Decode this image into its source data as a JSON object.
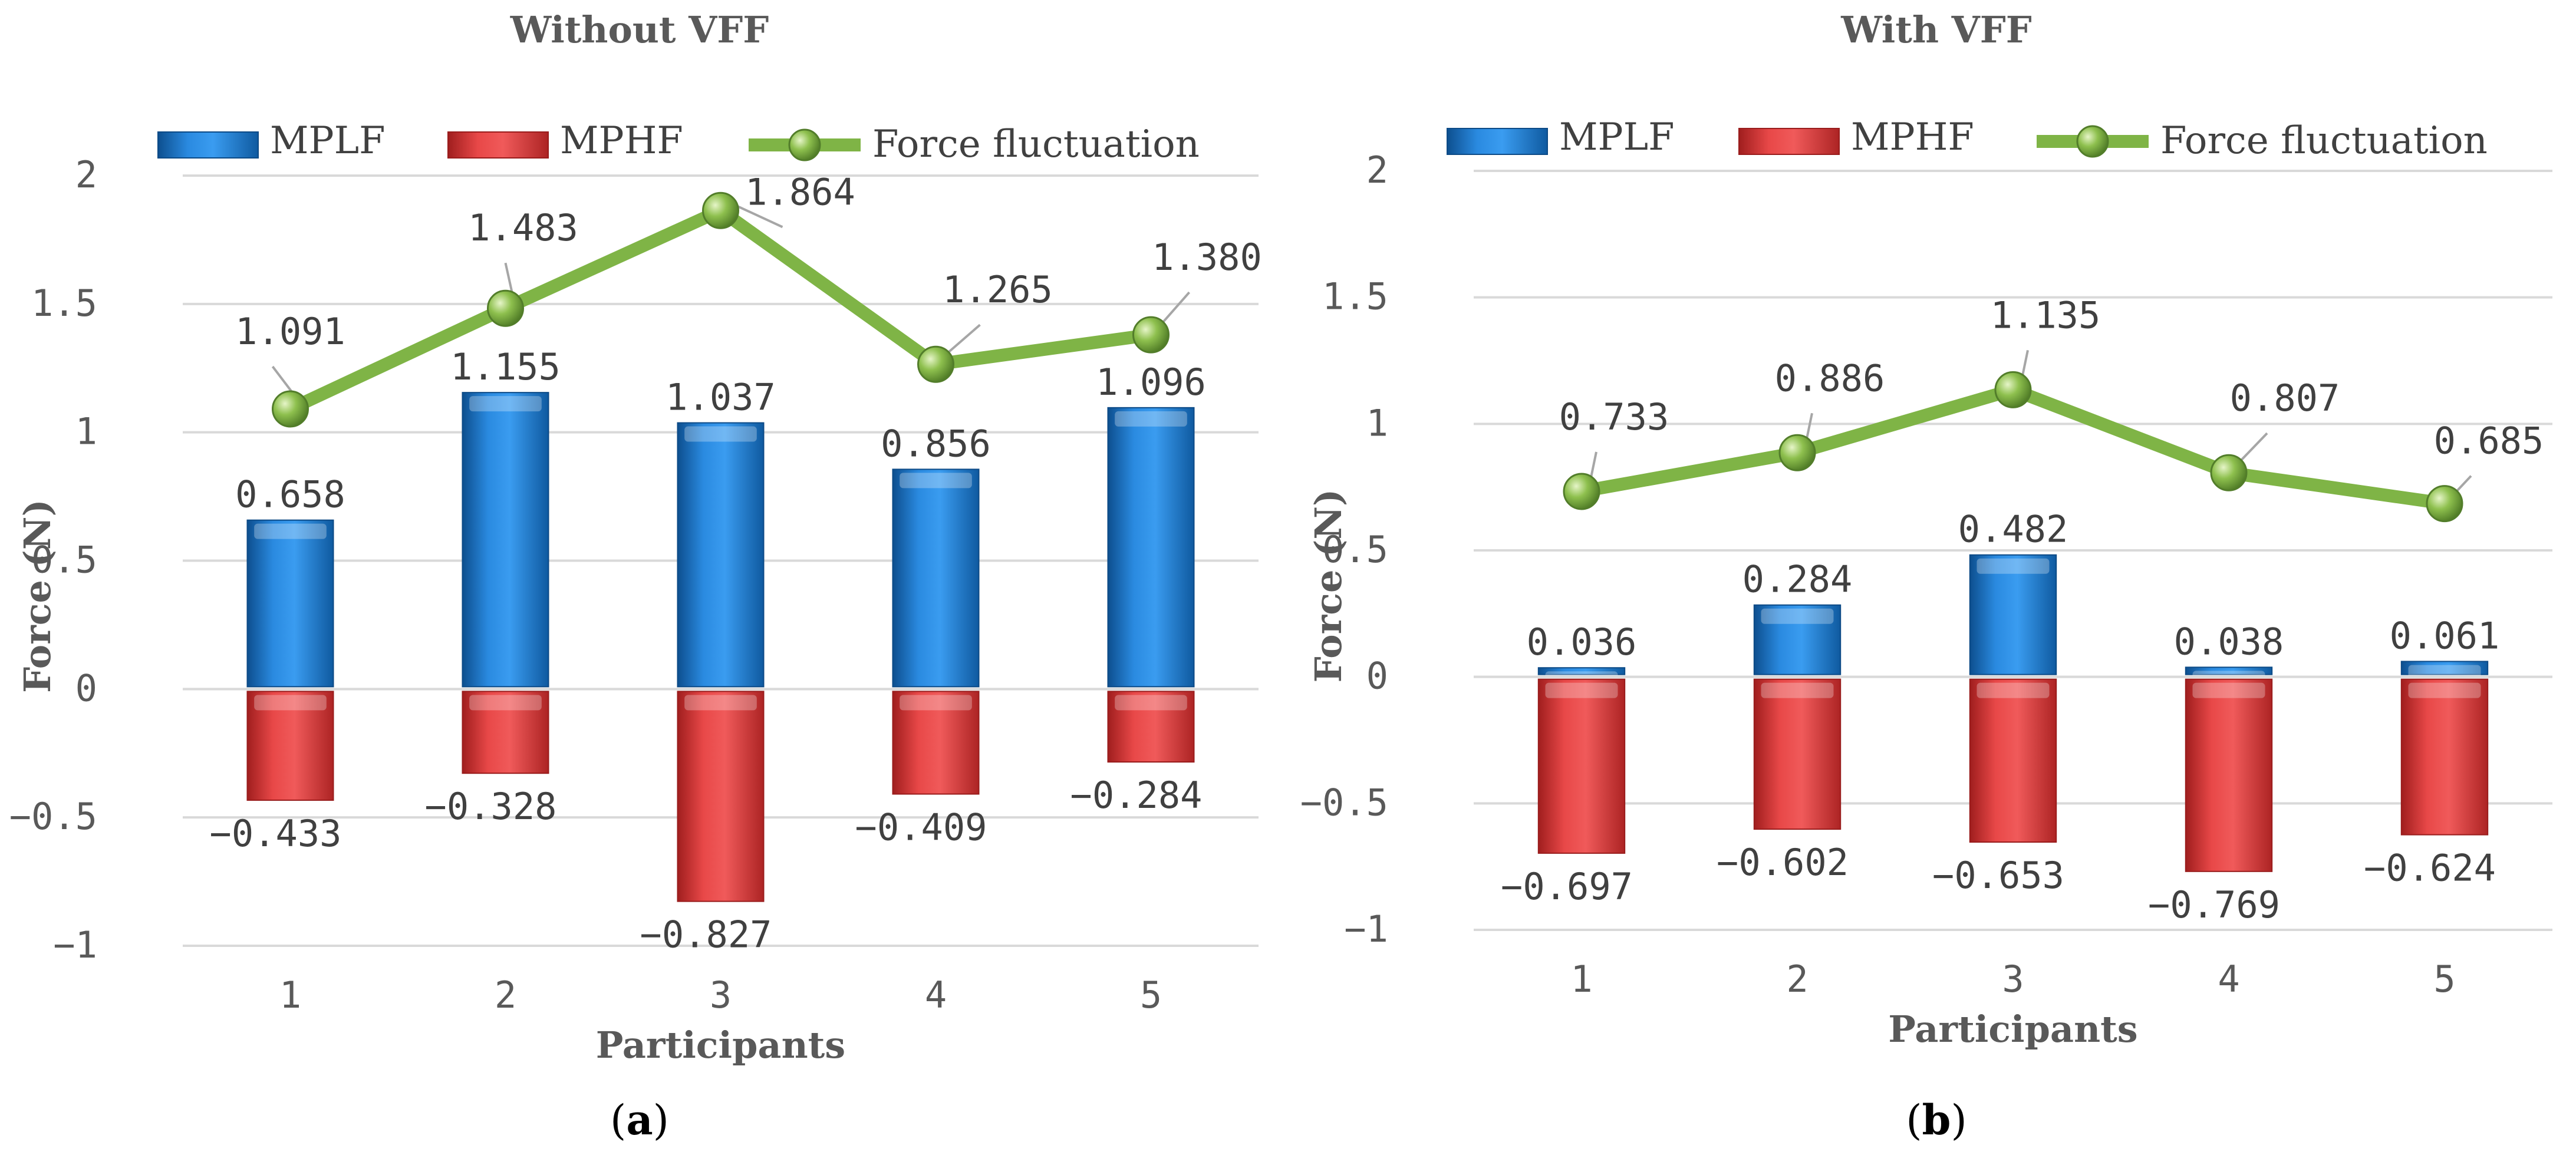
{
  "chart_data": [
    {
      "type": "bar",
      "panel": "a",
      "title": "Without VFF",
      "xlabel": "Participants",
      "ylabel": "Force (N)",
      "ylim": [
        -1,
        2
      ],
      "yticks": [
        -1,
        -0.5,
        0,
        0.5,
        1,
        1.5,
        2
      ],
      "ytick_labels": [
        "−1",
        "−0.5",
        "0",
        "0.5",
        "1",
        "1.5",
        "2"
      ],
      "categories": [
        "1",
        "2",
        "3",
        "4",
        "5"
      ],
      "series": [
        {
          "name": "MPLF",
          "kind": "bar",
          "color": "#1f77c9",
          "values": [
            0.658,
            1.155,
            1.037,
            0.856,
            1.096
          ],
          "labels": [
            "0.658",
            "1.155",
            "1.037",
            "0.856",
            "1.096"
          ]
        },
        {
          "name": "MPHF",
          "kind": "bar",
          "color": "#e03c3c",
          "values": [
            -0.433,
            -0.328,
            -0.827,
            -0.409,
            -0.284
          ],
          "labels": [
            "−0.433",
            "−0.328",
            "−0.827",
            "−0.409",
            "−0.284"
          ]
        },
        {
          "name": "Force fluctuation",
          "kind": "line",
          "color": "#7fb446",
          "values": [
            1.091,
            1.483,
            1.864,
            1.265,
            1.38
          ],
          "labels": [
            "1.091",
            "1.483",
            "1.864",
            "1.265",
            "1.380"
          ]
        }
      ],
      "grid": true,
      "legend": "top"
    },
    {
      "type": "bar",
      "panel": "b",
      "title": "With VFF",
      "xlabel": "Participants",
      "ylabel": "Force (N)",
      "ylim": [
        -1,
        2
      ],
      "yticks": [
        -1,
        -0.5,
        0,
        0.5,
        1,
        1.5,
        2
      ],
      "ytick_labels": [
        "−1",
        "−0.5",
        "0",
        "0.5",
        "1",
        "1.5",
        "2"
      ],
      "categories": [
        "1",
        "2",
        "3",
        "4",
        "5"
      ],
      "series": [
        {
          "name": "MPLF",
          "kind": "bar",
          "color": "#1f77c9",
          "values": [
            0.036,
            0.284,
            0.482,
            0.038,
            0.061
          ],
          "labels": [
            "0.036",
            "0.284",
            "0.482",
            "0.038",
            "0.061"
          ]
        },
        {
          "name": "MPHF",
          "kind": "bar",
          "color": "#e03c3c",
          "values": [
            -0.697,
            -0.602,
            -0.653,
            -0.769,
            -0.624
          ],
          "labels": [
            "−0.697",
            "−0.602",
            "−0.653",
            "−0.769",
            "−0.624"
          ]
        },
        {
          "name": "Force fluctuation",
          "kind": "line",
          "color": "#7fb446",
          "values": [
            0.733,
            0.886,
            1.135,
            0.807,
            0.685
          ],
          "labels": [
            "0.733",
            "0.886",
            "1.135",
            "0.807",
            "0.685"
          ]
        }
      ],
      "grid": true,
      "legend": "top"
    }
  ]
}
